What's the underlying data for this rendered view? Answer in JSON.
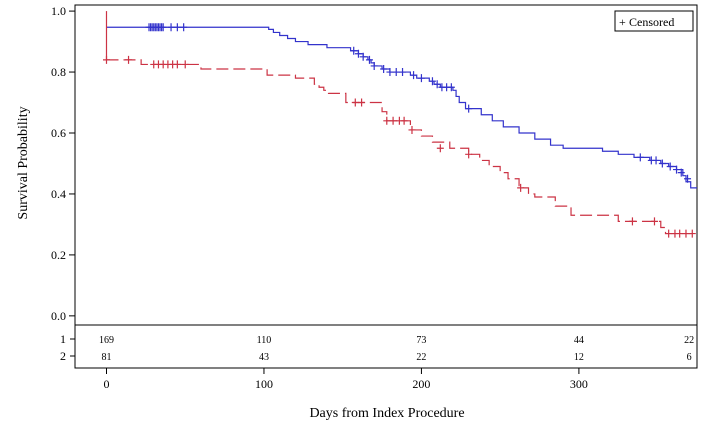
{
  "chart_data": {
    "type": "line",
    "subtype": "kaplan-meier",
    "xlabel": "Days from Index Procedure",
    "ylabel": "Survival Probability",
    "xlim": [
      -20,
      375
    ],
    "ylim": [
      -0.03,
      1.02
    ],
    "x_ticks": [
      0,
      100,
      200,
      300
    ],
    "y_ticks": [
      0.0,
      0.2,
      0.4,
      0.6,
      0.8,
      1.0
    ],
    "y_tick_labels": [
      "0.0",
      "0.2",
      "0.4",
      "0.6",
      "0.8",
      "1.0"
    ],
    "grid": false,
    "legend": {
      "position": "top-right",
      "label": "Censored",
      "symbol": "+"
    },
    "series": [
      {
        "group": "1",
        "color": "#3333cc",
        "line_style": "solid",
        "steps": [
          [
            0,
            0.947
          ],
          [
            100,
            0.947
          ],
          [
            103,
            0.94
          ],
          [
            106,
            0.93
          ],
          [
            110,
            0.92
          ],
          [
            115,
            0.91
          ],
          [
            120,
            0.9
          ],
          [
            128,
            0.89
          ],
          [
            140,
            0.88
          ],
          [
            155,
            0.87
          ],
          [
            160,
            0.86
          ],
          [
            163,
            0.85
          ],
          [
            166,
            0.84
          ],
          [
            168,
            0.83
          ],
          [
            170,
            0.82
          ],
          [
            175,
            0.81
          ],
          [
            180,
            0.8
          ],
          [
            190,
            0.8
          ],
          [
            193,
            0.79
          ],
          [
            197,
            0.78
          ],
          [
            205,
            0.77
          ],
          [
            208,
            0.76
          ],
          [
            212,
            0.75
          ],
          [
            220,
            0.74
          ],
          [
            222,
            0.72
          ],
          [
            224,
            0.7
          ],
          [
            228,
            0.68
          ],
          [
            238,
            0.66
          ],
          [
            245,
            0.64
          ],
          [
            252,
            0.62
          ],
          [
            262,
            0.6
          ],
          [
            272,
            0.58
          ],
          [
            282,
            0.56
          ],
          [
            290,
            0.55
          ],
          [
            315,
            0.54
          ],
          [
            325,
            0.53
          ],
          [
            335,
            0.52
          ],
          [
            345,
            0.51
          ],
          [
            352,
            0.5
          ],
          [
            357,
            0.49
          ],
          [
            362,
            0.48
          ],
          [
            366,
            0.46
          ],
          [
            368,
            0.44
          ],
          [
            371,
            0.42
          ],
          [
            375,
            0.42
          ]
        ],
        "censored": [
          [
            27,
            0.947
          ],
          [
            28,
            0.947
          ],
          [
            29,
            0.947
          ],
          [
            30,
            0.947
          ],
          [
            31,
            0.947
          ],
          [
            32,
            0.947
          ],
          [
            33,
            0.947
          ],
          [
            34,
            0.947
          ],
          [
            35,
            0.947
          ],
          [
            36,
            0.947
          ],
          [
            41,
            0.947
          ],
          [
            45,
            0.947
          ],
          [
            49,
            0.947
          ],
          [
            157,
            0.87
          ],
          [
            160,
            0.86
          ],
          [
            163,
            0.85
          ],
          [
            167,
            0.84
          ],
          [
            170,
            0.82
          ],
          [
            176,
            0.81
          ],
          [
            180,
            0.8
          ],
          [
            184,
            0.8
          ],
          [
            188,
            0.8
          ],
          [
            195,
            0.79
          ],
          [
            200,
            0.78
          ],
          [
            207,
            0.77
          ],
          [
            210,
            0.76
          ],
          [
            213,
            0.75
          ],
          [
            216,
            0.75
          ],
          [
            219,
            0.75
          ],
          [
            230,
            0.68
          ],
          [
            339,
            0.52
          ],
          [
            346,
            0.51
          ],
          [
            349,
            0.51
          ],
          [
            353,
            0.5
          ],
          [
            358,
            0.49
          ],
          [
            362,
            0.48
          ],
          [
            365,
            0.47
          ],
          [
            369,
            0.45
          ]
        ]
      },
      {
        "group": "2",
        "color": "#cc3344",
        "line_style": "dashed",
        "steps": [
          [
            0,
            0.84
          ],
          [
            20,
            0.84
          ],
          [
            22,
            0.825
          ],
          [
            57,
            0.825
          ],
          [
            60,
            0.81
          ],
          [
            100,
            0.81
          ],
          [
            102,
            0.79
          ],
          [
            118,
            0.79
          ],
          [
            120,
            0.78
          ],
          [
            130,
            0.78
          ],
          [
            132,
            0.76
          ],
          [
            135,
            0.75
          ],
          [
            138,
            0.74
          ],
          [
            141,
            0.73
          ],
          [
            150,
            0.73
          ],
          [
            152,
            0.7
          ],
          [
            170,
            0.7
          ],
          [
            175,
            0.67
          ],
          [
            178,
            0.64
          ],
          [
            190,
            0.64
          ],
          [
            193,
            0.61
          ],
          [
            200,
            0.59
          ],
          [
            207,
            0.57
          ],
          [
            218,
            0.55
          ],
          [
            230,
            0.53
          ],
          [
            237,
            0.51
          ],
          [
            243,
            0.49
          ],
          [
            250,
            0.47
          ],
          [
            255,
            0.45
          ],
          [
            262,
            0.42
          ],
          [
            268,
            0.4
          ],
          [
            272,
            0.39
          ],
          [
            285,
            0.36
          ],
          [
            295,
            0.33
          ],
          [
            323,
            0.33
          ],
          [
            325,
            0.31
          ],
          [
            350,
            0.31
          ],
          [
            352,
            0.29
          ],
          [
            355,
            0.27
          ],
          [
            375,
            0.27
          ]
        ],
        "censored": [
          [
            0,
            0.84
          ],
          [
            14,
            0.84
          ],
          [
            30,
            0.825
          ],
          [
            33,
            0.825
          ],
          [
            36,
            0.825
          ],
          [
            39,
            0.825
          ],
          [
            42,
            0.825
          ],
          [
            45,
            0.825
          ],
          [
            50,
            0.825
          ],
          [
            158,
            0.7
          ],
          [
            162,
            0.7
          ],
          [
            178,
            0.64
          ],
          [
            182,
            0.64
          ],
          [
            186,
            0.64
          ],
          [
            189,
            0.64
          ],
          [
            194,
            0.61
          ],
          [
            212,
            0.55
          ],
          [
            230,
            0.53
          ],
          [
            263,
            0.42
          ],
          [
            334,
            0.31
          ],
          [
            348,
            0.31
          ],
          [
            357,
            0.27
          ],
          [
            361,
            0.27
          ],
          [
            364,
            0.27
          ],
          [
            368,
            0.27
          ],
          [
            372,
            0.27
          ]
        ]
      }
    ],
    "risk_table": {
      "times": [
        0,
        100,
        200,
        300,
        370
      ],
      "rows": [
        {
          "group": "1",
          "counts": [
            "169",
            "110",
            "73",
            "44",
            "22"
          ]
        },
        {
          "group": "2",
          "counts": [
            "81",
            "43",
            "22",
            "12",
            "6"
          ]
        }
      ]
    }
  }
}
